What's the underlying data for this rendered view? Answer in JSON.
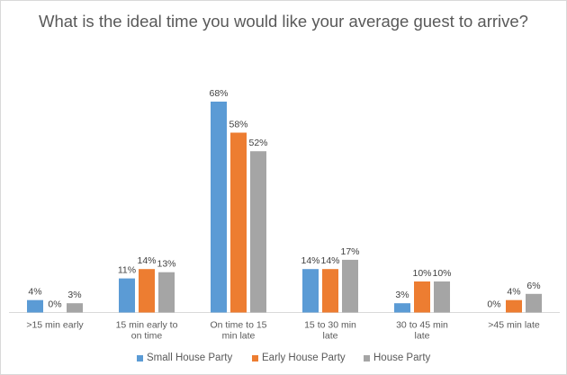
{
  "chart_data": {
    "type": "bar",
    "title": "What is the ideal time you would like your average guest to arrive?",
    "categories": [
      ">15 min early",
      "15 min early to on time",
      "On time to 15 min late",
      "15 to 30 min late",
      "30 to 45 min late",
      ">45 min late"
    ],
    "series": [
      {
        "name": "Small House Party",
        "color": "#5b9bd5",
        "values": [
          4,
          11,
          68,
          14,
          3,
          0
        ]
      },
      {
        "name": "Early House Party",
        "color": "#ed7d31",
        "values": [
          0,
          14,
          58,
          14,
          10,
          4
        ]
      },
      {
        "name": "House Party",
        "color": "#a5a5a5",
        "values": [
          3,
          13,
          52,
          17,
          10,
          6
        ]
      }
    ],
    "value_suffix": "%",
    "ylim": [
      0,
      70
    ],
    "grid": false,
    "legend_position": "bottom"
  }
}
